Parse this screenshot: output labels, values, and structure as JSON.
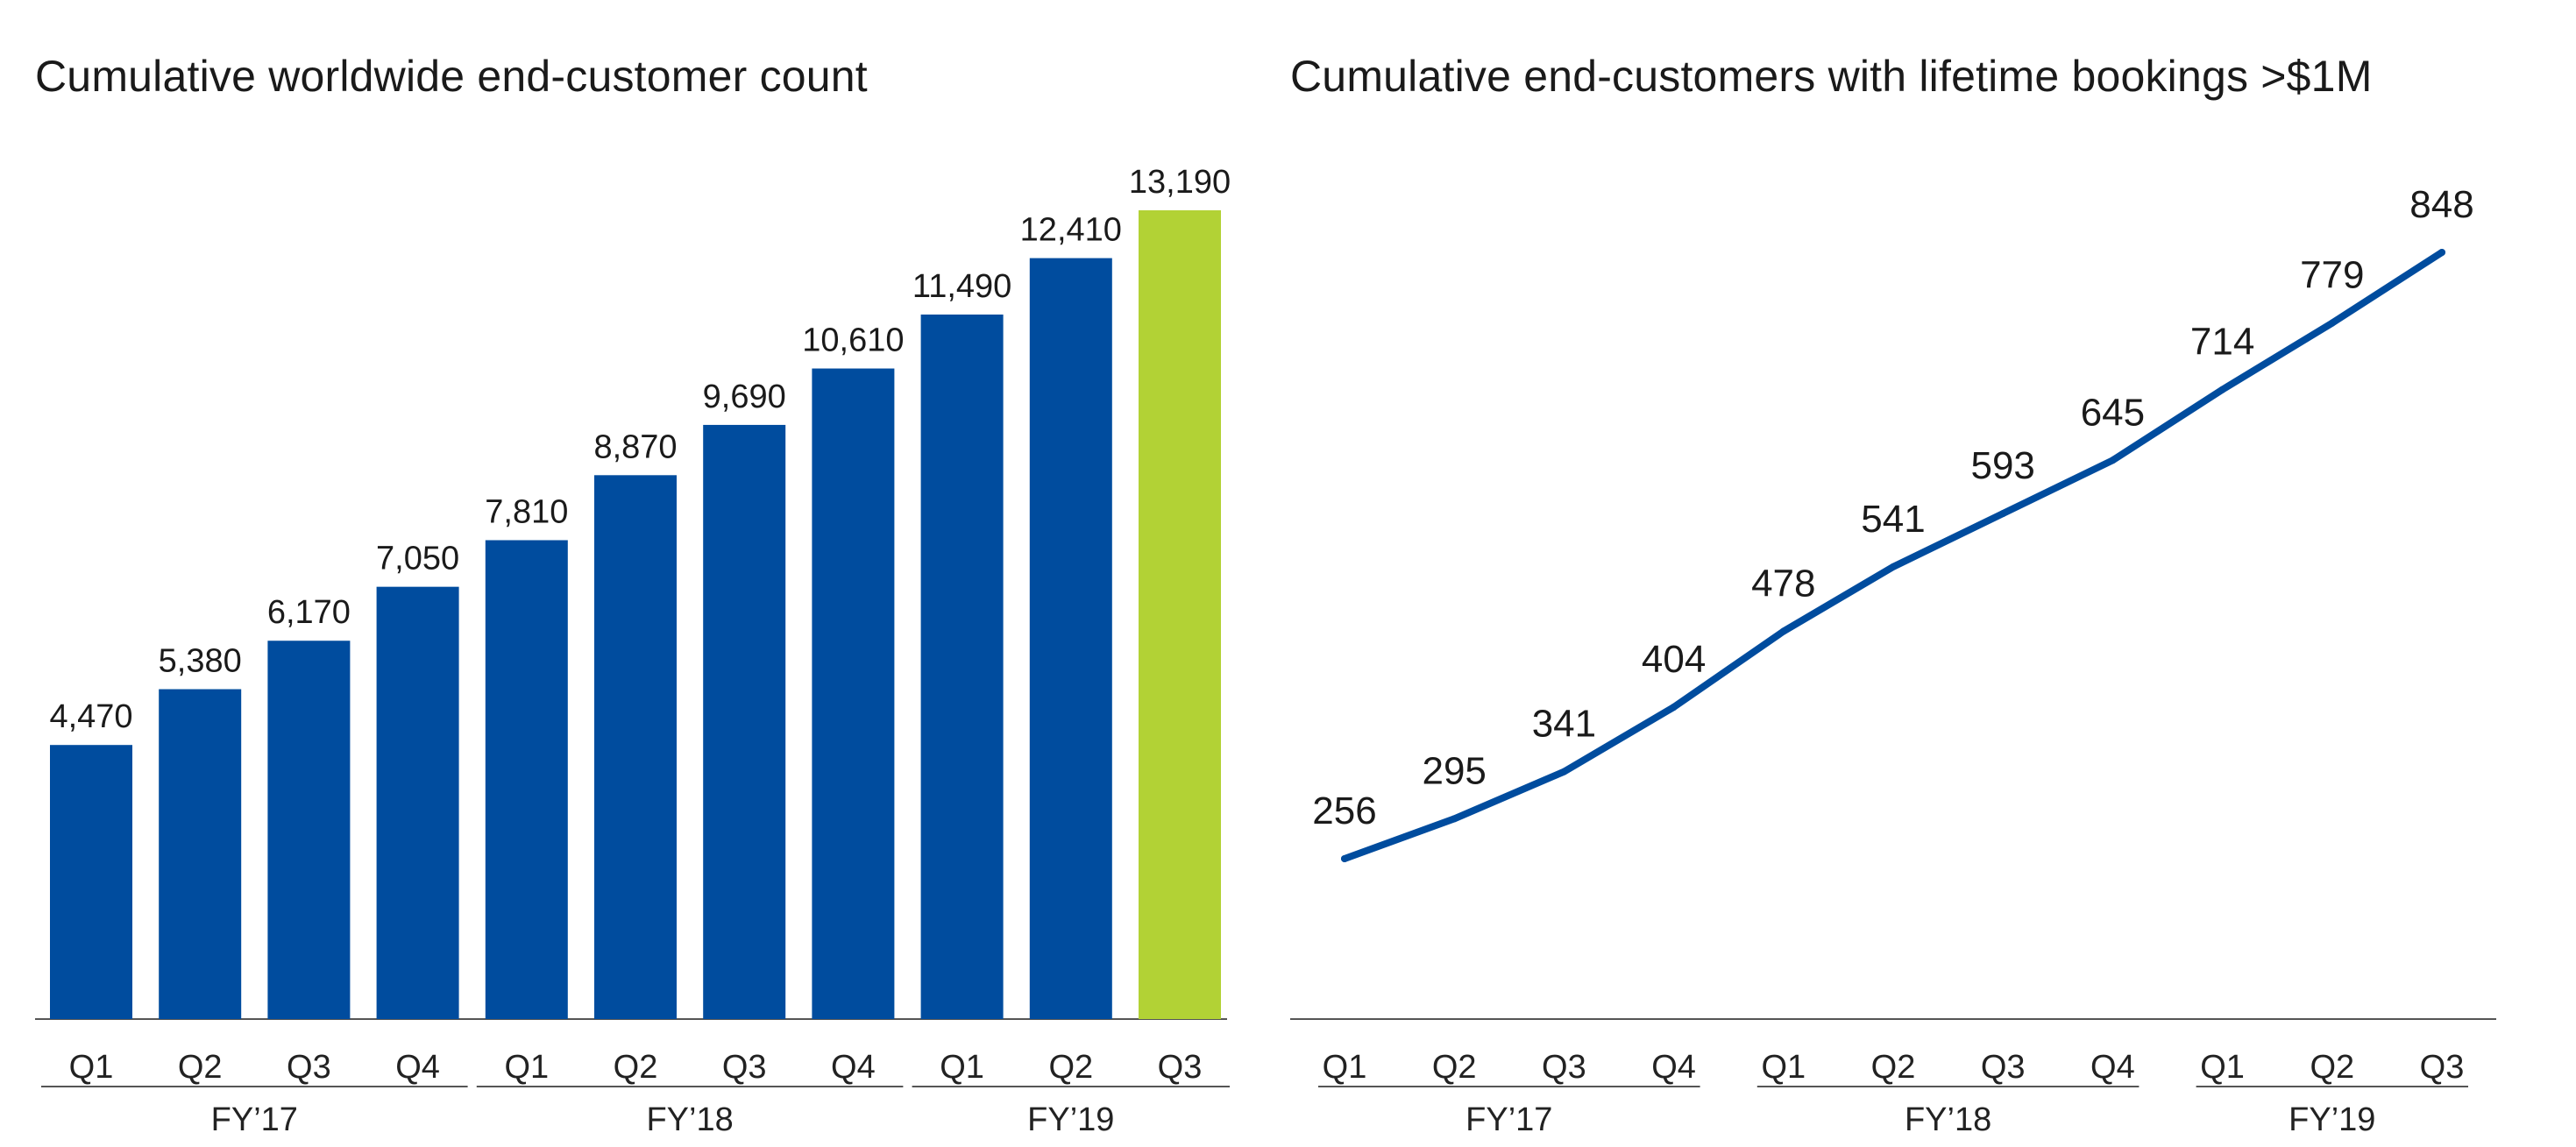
{
  "chart_data": [
    {
      "type": "bar",
      "title": "Cumulative worldwide end-customer count",
      "categories": [
        "Q1",
        "Q2",
        "Q3",
        "Q4",
        "Q1",
        "Q2",
        "Q3",
        "Q4",
        "Q1",
        "Q2",
        "Q3"
      ],
      "groups": [
        {
          "label": "FY’17",
          "start": 0,
          "end": 3
        },
        {
          "label": "FY’18",
          "start": 4,
          "end": 7
        },
        {
          "label": "FY’19",
          "start": 8,
          "end": 10
        }
      ],
      "values": [
        4470,
        5380,
        6170,
        7050,
        7810,
        8870,
        9690,
        10610,
        11490,
        12410,
        13190
      ],
      "value_labels": [
        "4,470",
        "5,380",
        "6,170",
        "7,050",
        "7,810",
        "8,870",
        "9,690",
        "10,610",
        "11,490",
        "12,410",
        "13,190"
      ],
      "ylim": [
        0,
        13190
      ],
      "grid": false,
      "colors": {
        "bar": "#004c9e",
        "highlight": "#b2d235"
      },
      "highlight_index": 10
    },
    {
      "type": "line",
      "title": "Cumulative end-customers with lifetime bookings >$1M",
      "categories": [
        "Q1",
        "Q2",
        "Q3",
        "Q4",
        "Q1",
        "Q2",
        "Q3",
        "Q4",
        "Q1",
        "Q2",
        "Q3"
      ],
      "groups": [
        {
          "label": "FY’17",
          "start": 0,
          "end": 3
        },
        {
          "label": "FY’18",
          "start": 4,
          "end": 7
        },
        {
          "label": "FY’19",
          "start": 8,
          "end": 10
        }
      ],
      "values": [
        256,
        295,
        341,
        404,
        478,
        541,
        593,
        645,
        714,
        779,
        848
      ],
      "value_labels": [
        "256",
        "295",
        "341",
        "404",
        "478",
        "541",
        "593",
        "645",
        "714",
        "779",
        "848"
      ],
      "ylim": [
        256,
        848
      ],
      "grid": false,
      "colors": {
        "line": "#004c9e"
      }
    }
  ]
}
